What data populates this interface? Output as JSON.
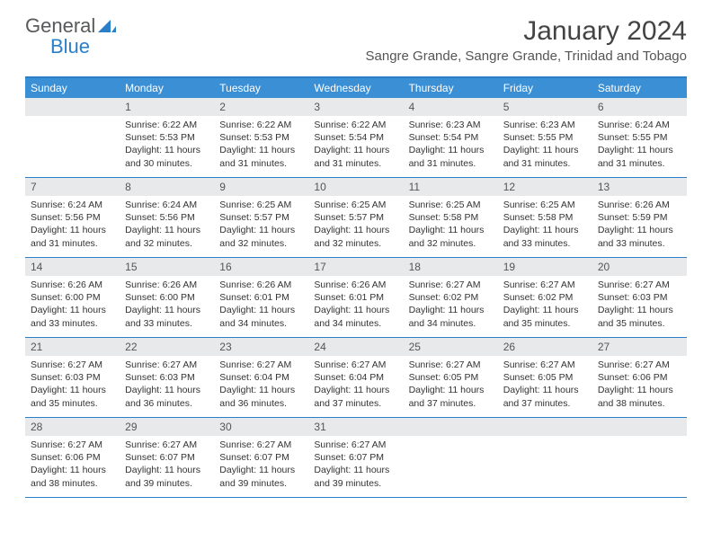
{
  "brand": {
    "part1": "General",
    "part2": "Blue"
  },
  "title": "January 2024",
  "location": "Sangre Grande, Sangre Grande, Trinidad and Tobago",
  "colors": {
    "header_bg": "#3b8fd4",
    "border": "#2a7fc9",
    "daynum_bg": "#e8e9ea",
    "text": "#333333",
    "logo_gray": "#57595b",
    "logo_blue": "#2a7fc9"
  },
  "day_names": [
    "Sunday",
    "Monday",
    "Tuesday",
    "Wednesday",
    "Thursday",
    "Friday",
    "Saturday"
  ],
  "weeks": [
    [
      {
        "n": "",
        "sr": "",
        "ss": "",
        "dl": ""
      },
      {
        "n": "1",
        "sr": "6:22 AM",
        "ss": "5:53 PM",
        "dl": "11 hours and 30 minutes."
      },
      {
        "n": "2",
        "sr": "6:22 AM",
        "ss": "5:53 PM",
        "dl": "11 hours and 31 minutes."
      },
      {
        "n": "3",
        "sr": "6:22 AM",
        "ss": "5:54 PM",
        "dl": "11 hours and 31 minutes."
      },
      {
        "n": "4",
        "sr": "6:23 AM",
        "ss": "5:54 PM",
        "dl": "11 hours and 31 minutes."
      },
      {
        "n": "5",
        "sr": "6:23 AM",
        "ss": "5:55 PM",
        "dl": "11 hours and 31 minutes."
      },
      {
        "n": "6",
        "sr": "6:24 AM",
        "ss": "5:55 PM",
        "dl": "11 hours and 31 minutes."
      }
    ],
    [
      {
        "n": "7",
        "sr": "6:24 AM",
        "ss": "5:56 PM",
        "dl": "11 hours and 31 minutes."
      },
      {
        "n": "8",
        "sr": "6:24 AM",
        "ss": "5:56 PM",
        "dl": "11 hours and 32 minutes."
      },
      {
        "n": "9",
        "sr": "6:25 AM",
        "ss": "5:57 PM",
        "dl": "11 hours and 32 minutes."
      },
      {
        "n": "10",
        "sr": "6:25 AM",
        "ss": "5:57 PM",
        "dl": "11 hours and 32 minutes."
      },
      {
        "n": "11",
        "sr": "6:25 AM",
        "ss": "5:58 PM",
        "dl": "11 hours and 32 minutes."
      },
      {
        "n": "12",
        "sr": "6:25 AM",
        "ss": "5:58 PM",
        "dl": "11 hours and 33 minutes."
      },
      {
        "n": "13",
        "sr": "6:26 AM",
        "ss": "5:59 PM",
        "dl": "11 hours and 33 minutes."
      }
    ],
    [
      {
        "n": "14",
        "sr": "6:26 AM",
        "ss": "6:00 PM",
        "dl": "11 hours and 33 minutes."
      },
      {
        "n": "15",
        "sr": "6:26 AM",
        "ss": "6:00 PM",
        "dl": "11 hours and 33 minutes."
      },
      {
        "n": "16",
        "sr": "6:26 AM",
        "ss": "6:01 PM",
        "dl": "11 hours and 34 minutes."
      },
      {
        "n": "17",
        "sr": "6:26 AM",
        "ss": "6:01 PM",
        "dl": "11 hours and 34 minutes."
      },
      {
        "n": "18",
        "sr": "6:27 AM",
        "ss": "6:02 PM",
        "dl": "11 hours and 34 minutes."
      },
      {
        "n": "19",
        "sr": "6:27 AM",
        "ss": "6:02 PM",
        "dl": "11 hours and 35 minutes."
      },
      {
        "n": "20",
        "sr": "6:27 AM",
        "ss": "6:03 PM",
        "dl": "11 hours and 35 minutes."
      }
    ],
    [
      {
        "n": "21",
        "sr": "6:27 AM",
        "ss": "6:03 PM",
        "dl": "11 hours and 35 minutes."
      },
      {
        "n": "22",
        "sr": "6:27 AM",
        "ss": "6:03 PM",
        "dl": "11 hours and 36 minutes."
      },
      {
        "n": "23",
        "sr": "6:27 AM",
        "ss": "6:04 PM",
        "dl": "11 hours and 36 minutes."
      },
      {
        "n": "24",
        "sr": "6:27 AM",
        "ss": "6:04 PM",
        "dl": "11 hours and 37 minutes."
      },
      {
        "n": "25",
        "sr": "6:27 AM",
        "ss": "6:05 PM",
        "dl": "11 hours and 37 minutes."
      },
      {
        "n": "26",
        "sr": "6:27 AM",
        "ss": "6:05 PM",
        "dl": "11 hours and 37 minutes."
      },
      {
        "n": "27",
        "sr": "6:27 AM",
        "ss": "6:06 PM",
        "dl": "11 hours and 38 minutes."
      }
    ],
    [
      {
        "n": "28",
        "sr": "6:27 AM",
        "ss": "6:06 PM",
        "dl": "11 hours and 38 minutes."
      },
      {
        "n": "29",
        "sr": "6:27 AM",
        "ss": "6:07 PM",
        "dl": "11 hours and 39 minutes."
      },
      {
        "n": "30",
        "sr": "6:27 AM",
        "ss": "6:07 PM",
        "dl": "11 hours and 39 minutes."
      },
      {
        "n": "31",
        "sr": "6:27 AM",
        "ss": "6:07 PM",
        "dl": "11 hours and 39 minutes."
      },
      {
        "n": "",
        "sr": "",
        "ss": "",
        "dl": ""
      },
      {
        "n": "",
        "sr": "",
        "ss": "",
        "dl": ""
      },
      {
        "n": "",
        "sr": "",
        "ss": "",
        "dl": ""
      }
    ]
  ],
  "labels": {
    "sunrise": "Sunrise:",
    "sunset": "Sunset:",
    "daylight": "Daylight:"
  }
}
